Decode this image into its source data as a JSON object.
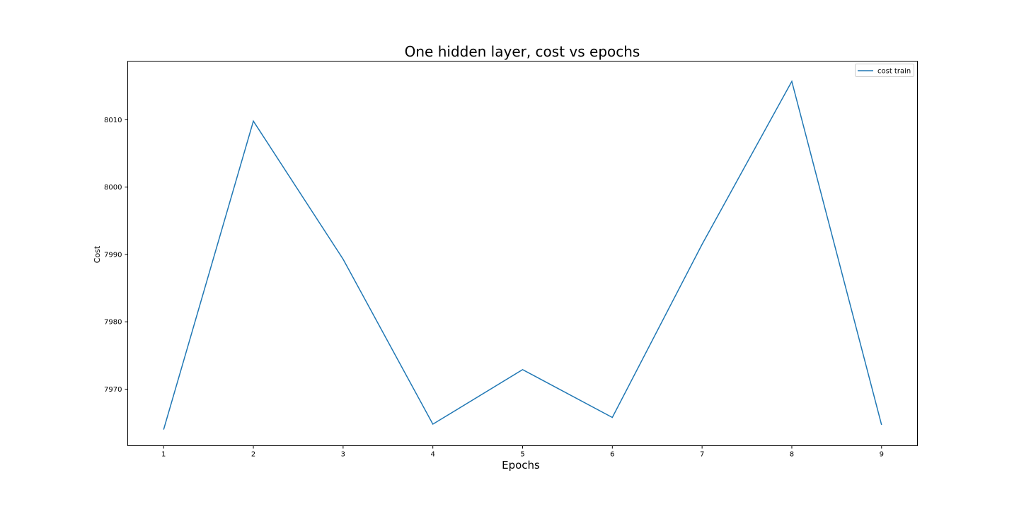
{
  "chart_data": {
    "type": "line",
    "title": "One hidden layer, cost vs epochs",
    "xlabel": "Epochs",
    "ylabel": "Cost",
    "x": [
      1,
      2,
      3,
      4,
      5,
      6,
      7,
      8,
      9
    ],
    "x_ticks": [
      1,
      2,
      3,
      4,
      5,
      6,
      7,
      8,
      9
    ],
    "y_ticks": [
      7970,
      7980,
      7990,
      8000,
      8010
    ],
    "xlim": [
      0.6,
      9.4
    ],
    "ylim": [
      7961.6,
      8018.7
    ],
    "grid": false,
    "legend_position": "upper right",
    "series": [
      {
        "name": "cost train",
        "color": "#1f77b4",
        "values": [
          7964.0,
          8009.8,
          7989.3,
          7964.8,
          7972.9,
          7965.8,
          7991.5,
          8015.7,
          7964.7
        ]
      }
    ]
  }
}
